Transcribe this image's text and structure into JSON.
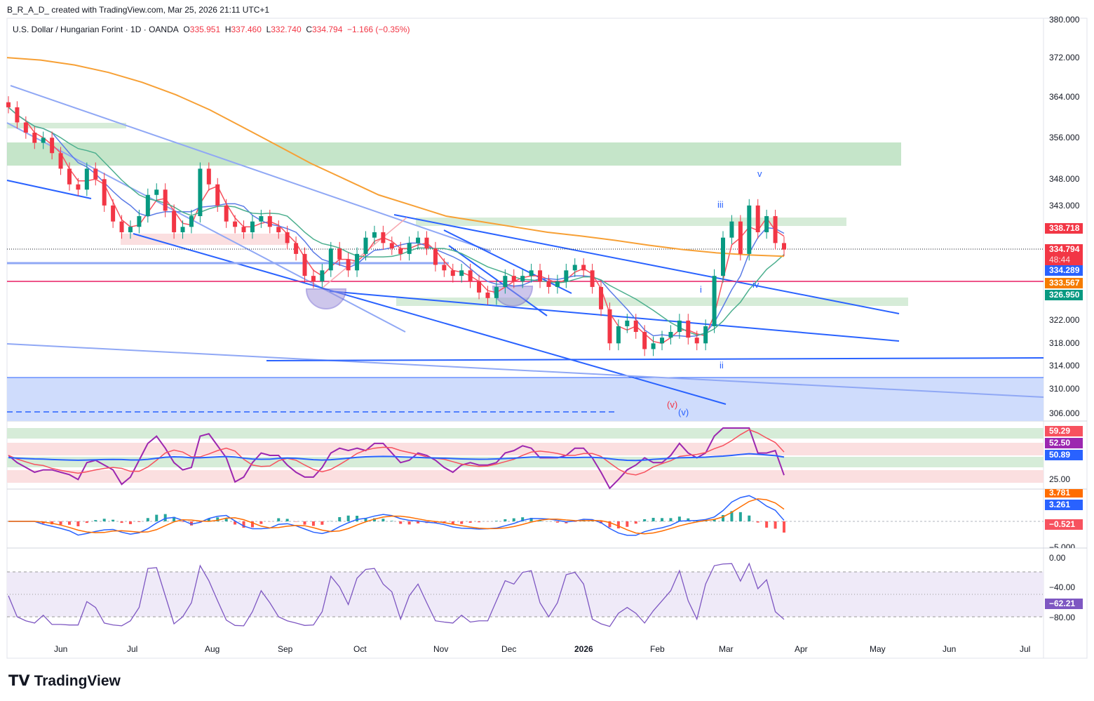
{
  "credit": "B_R_A_D_ created with TradingView.com, Mar 25, 2026 21:11 UTC+1",
  "legend": {
    "symbol": "U.S. Dollar / Hungarian Forint · 1D · OANDA",
    "o_label": "O",
    "o": "335.951",
    "h_label": "H",
    "h": "337.460",
    "l_label": "L",
    "l": "332.740",
    "c_label": "C",
    "c": "334.794",
    "change": "−1.166 (−0.35%)"
  },
  "price_axis": [
    "380.000",
    "372.000",
    "364.000",
    "356.000",
    "348.000",
    "343.000",
    "322.000",
    "318.000",
    "314.000",
    "310.000",
    "306.000"
  ],
  "price_labels": {
    "resistance": "338.718",
    "last": "334.794",
    "countdown": "48:44",
    "ma_fast": "334.289",
    "ma200": "333.567",
    "ma_slow": "326.950"
  },
  "rsi": {
    "labels": [
      "59.29",
      "52.50",
      "50.89"
    ],
    "tick": "25.00"
  },
  "macd": {
    "labels": [
      "3.781",
      "3.261",
      "−0.521"
    ],
    "tick": "−5.000"
  },
  "wpr": {
    "ticks": [
      "0.00",
      "−40.00",
      "−80.00"
    ],
    "label": "−62.21"
  },
  "months": [
    "Jun",
    "Jul",
    "Aug",
    "Sep",
    "Oct",
    "Nov",
    "Dec",
    "2026",
    "Feb",
    "Mar",
    "Apr",
    "May",
    "Jun",
    "Jul"
  ],
  "waves": {
    "v": "v",
    "iii": "iii",
    "i": "i",
    "ii": "ii",
    "iv": "iv",
    "v_red": "(v)",
    "v_blue": "(v)"
  },
  "logo": "TradingView",
  "colors": {
    "up": "#089981",
    "down": "#f23645",
    "ma200": "#f7a035",
    "blue": "#2962ff"
  },
  "chart_data": {
    "type": "candlestick",
    "title": "USD/HUF 1D",
    "closes": [
      362,
      359,
      357,
      355,
      356,
      353,
      350,
      347,
      346,
      350,
      348,
      343,
      340,
      338,
      339,
      341,
      345,
      346,
      342,
      338,
      339,
      341,
      350,
      347,
      343,
      340,
      339,
      338,
      340,
      341,
      339,
      338,
      336,
      334,
      330,
      329,
      331,
      335,
      333,
      331,
      334,
      337,
      338,
      336,
      335,
      334,
      336,
      337,
      335,
      332,
      331,
      330,
      331,
      329,
      327,
      326,
      328,
      330,
      329,
      330,
      331,
      329,
      328,
      329,
      331,
      332,
      331,
      328,
      324,
      318,
      321,
      322,
      320,
      317,
      318,
      319,
      320,
      322,
      319,
      318,
      321,
      330,
      337,
      340,
      334,
      343,
      338,
      341,
      336,
      334.794
    ],
    "ma200": [
      372,
      371.5,
      370.5,
      369,
      367,
      364.5,
      361.5,
      358,
      354.5,
      351,
      348,
      345,
      343,
      341,
      340,
      339,
      338,
      337.3,
      336.5,
      335.6,
      334.8,
      334.2,
      333.8,
      333.567
    ]
  }
}
